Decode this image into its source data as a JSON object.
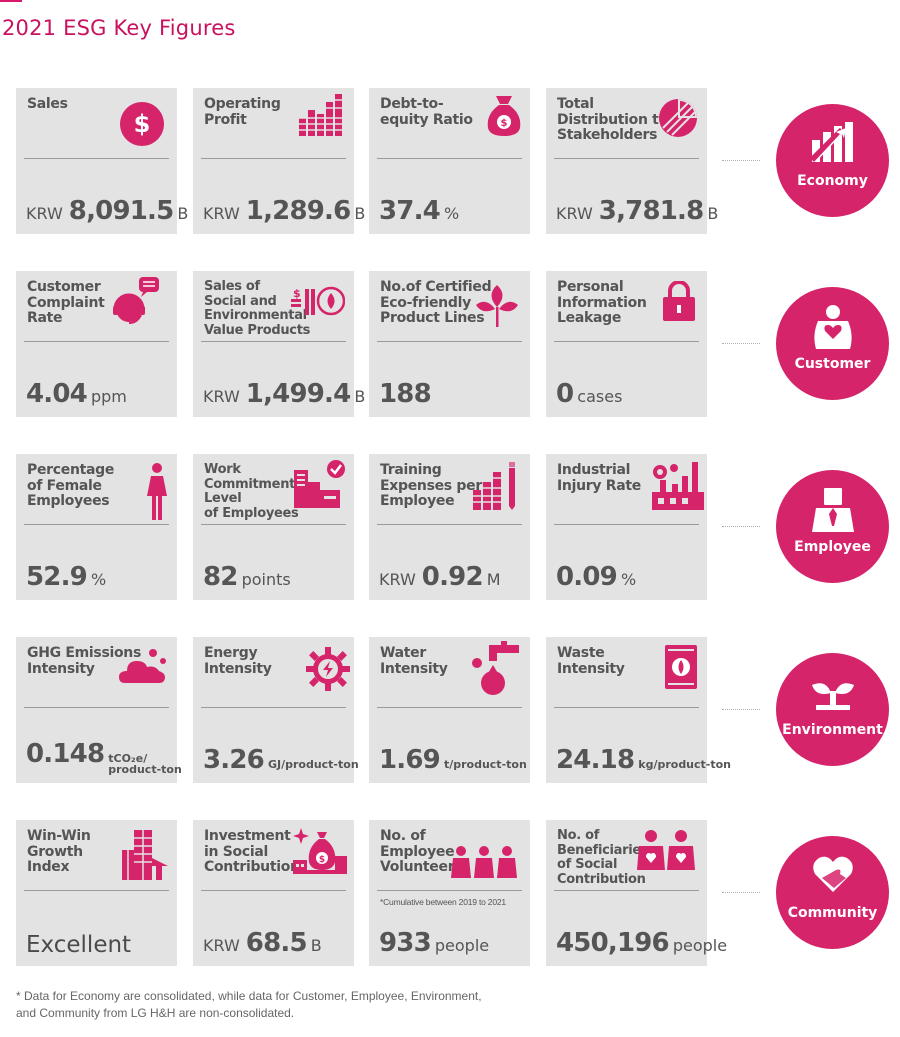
{
  "title": "2021 ESG Key Figures",
  "accent_color": "#d6246b",
  "categories": [
    {
      "label": "Economy",
      "icon": "chart-growth-icon"
    },
    {
      "label": "Customer",
      "icon": "heart-person-icon"
    },
    {
      "label": "Employee",
      "icon": "person-tie-icon"
    },
    {
      "label": "Environment",
      "icon": "sprout-icon"
    },
    {
      "label": "Community",
      "icon": "heart-hand-icon"
    }
  ],
  "cards": [
    {
      "label": "Sales",
      "prefix": "KRW",
      "value": "8,091.5",
      "unit": "B",
      "icon": "dollar-coin-icon"
    },
    {
      "label": "Operating\nProfit",
      "prefix": "KRW",
      "value": "1,289.6",
      "unit": "B",
      "icon": "bar-chart-icon"
    },
    {
      "label": "Debt-to-\nequity Ratio",
      "prefix": "",
      "value": "37.4",
      "unit": "%",
      "icon": "money-bag-icon"
    },
    {
      "label": "Total\nDistribution to\nStakeholders",
      "prefix": "KRW",
      "value": "3,781.8",
      "unit": "B",
      "icon": "pie-chart-icon"
    },
    {
      "label": "Customer\nComplaint\nRate",
      "prefix": "",
      "value": "4.04",
      "unit": "ppm",
      "icon": "headset-icon"
    },
    {
      "label": "Sales of\nSocial and\nEnvironmental\nValue Products",
      "prefix": "KRW",
      "value": "1,499.4",
      "unit": "B",
      "icon": "eco-sales-icon"
    },
    {
      "label": "No.of Certified\nEco-friendly\nProduct Lines",
      "prefix": "",
      "value": "188",
      "unit": "",
      "icon": "leaf-icon"
    },
    {
      "label": "Personal\nInformation\nLeakage",
      "prefix": "",
      "value": "0",
      "unit": "cases",
      "icon": "lock-icon"
    },
    {
      "label": "Percentage\nof Female\nEmployees",
      "prefix": "",
      "value": "52.9",
      "unit": "%",
      "icon": "female-icon"
    },
    {
      "label": "Work\nCommitment\nLevel\nof Employees",
      "prefix": "",
      "value": "82",
      "unit": "points",
      "icon": "factory-check-icon"
    },
    {
      "label": "Training\nExpenses per\nEmployee",
      "prefix": "KRW",
      "value": "0.92",
      "unit": "M",
      "icon": "books-pencil-icon"
    },
    {
      "label": "Industrial\nInjury Rate",
      "prefix": "",
      "value": "0.09",
      "unit": "%",
      "icon": "factory-gear-icon"
    },
    {
      "label": "GHG Emissions\nIntensity",
      "prefix": "",
      "value": "0.148",
      "unit": "tCO₂e/\nproduct-ton",
      "icon": "cloud-icon"
    },
    {
      "label": "Energy\nIntensity",
      "prefix": "",
      "value": "3.26",
      "unit": "GJ/product-ton",
      "icon": "energy-gear-icon"
    },
    {
      "label": "Water\nIntensity",
      "prefix": "",
      "value": "1.69",
      "unit": "t/product-ton",
      "icon": "faucet-icon"
    },
    {
      "label": "Waste\nIntensity",
      "prefix": "",
      "value": "24.18",
      "unit": "kg/product-ton",
      "icon": "barrel-icon"
    },
    {
      "label": "Win-Win\nGrowth\nIndex",
      "prefix": "",
      "value": "Excellent",
      "unit": "",
      "icon": "buildings-arrow-icon",
      "plain": true
    },
    {
      "label": "Investment\nin Social\nContribution",
      "prefix": "KRW",
      "value": "68.5",
      "unit": "B",
      "icon": "investment-bag-icon"
    },
    {
      "label": "No. of\nEmployee\nVolunteers",
      "prefix": "",
      "value": "933",
      "unit": "people",
      "icon": "volunteers-icon",
      "note": "*Cumulative between 2019 to 2021"
    },
    {
      "label": "No. of\nBeneficiaries\nof Social\nContribution",
      "prefix": "",
      "value": "450,196",
      "unit": "people",
      "icon": "beneficiaries-icon"
    }
  ],
  "footnote": "* Data for Economy are consolidated, while data for Customer, Employee, Environment,\n  and Community from LG H&H are non-consolidated."
}
